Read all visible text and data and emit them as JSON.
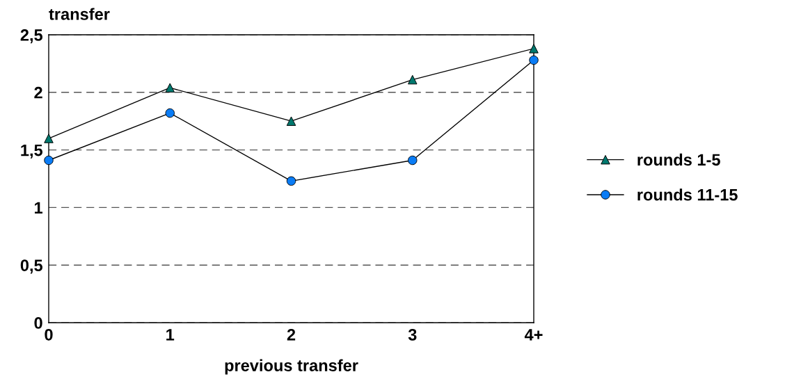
{
  "chart_data": {
    "type": "line",
    "ylabel": "transfer",
    "xlabel": "previous transfer",
    "categories": [
      "0",
      "1",
      "2",
      "3",
      "4+"
    ],
    "series": [
      {
        "name": "rounds 1-5",
        "color": "#00786e",
        "marker": "triangle",
        "values": [
          1.6,
          2.04,
          1.75,
          2.11,
          2.38
        ]
      },
      {
        "name": "rounds 11-15",
        "color": "#0a7cf5",
        "marker": "circle",
        "values": [
          1.41,
          1.82,
          1.23,
          1.41,
          2.28
        ]
      }
    ],
    "ylim": [
      0,
      2.5
    ],
    "yticks": [
      0,
      {
        "value": 0.5,
        "label": "0,5"
      },
      1,
      {
        "value": 1.5,
        "label": "1,5"
      },
      2,
      {
        "value": 2.5,
        "label": "2,5"
      }
    ],
    "grid": "y",
    "line_style": "solid",
    "legend": "right"
  }
}
